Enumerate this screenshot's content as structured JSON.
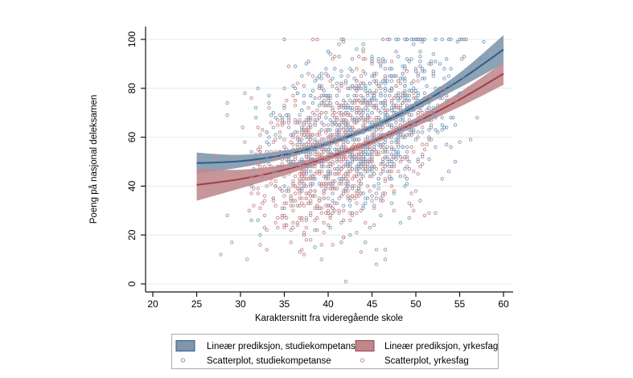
{
  "chart_data": {
    "type": "scatter",
    "title": "",
    "xlabel": "Karaktersnitt fra videregående skole",
    "ylabel": "Poeng på nasjonal deleksamen",
    "xlim": [
      18.9,
      61
    ],
    "ylim": [
      0,
      105
    ],
    "x_ticks": [
      20,
      25,
      30,
      35,
      40,
      45,
      50,
      55,
      60
    ],
    "y_ticks": [
      0,
      20,
      40,
      60,
      80,
      100
    ],
    "grid": "horizontal-only",
    "legend_position": "bottom-center",
    "series": [
      {
        "name": "Lineær prediksjon, studiekompetanse",
        "type": "line-with-ci",
        "line_color": "#2d5e8b",
        "band_color": "#7e95ab",
        "x": [
          25,
          30,
          35,
          40,
          45,
          50,
          55,
          60
        ],
        "y": [
          49.4,
          50.2,
          52.8,
          57.5,
          64.1,
          72.8,
          83.3,
          95.9
        ],
        "ci_upper": [
          53.7,
          52.8,
          54.5,
          58.6,
          65.3,
          74.4,
          86.3,
          101.7
        ],
        "ci_lower": [
          45.2,
          47.6,
          51.2,
          56.4,
          63.0,
          71.2,
          80.3,
          90.1
        ],
        "trend_coef": {
          "a": 75.5,
          "b": -2.03,
          "c": 0.0395
        }
      },
      {
        "name": "Lineær prediksjon, yrkesfag",
        "type": "line-with-ci",
        "line_color": "#9e3f47",
        "band_color": "#bf878c",
        "x": [
          25,
          30,
          35,
          40,
          45,
          50,
          55,
          60
        ],
        "y": [
          40.5,
          42.9,
          46.6,
          51.7,
          58.2,
          66.1,
          75.4,
          86.0
        ],
        "ci_upper": [
          47.0,
          46.7,
          48.8,
          52.9,
          59.4,
          67.9,
          78.4,
          90.6
        ],
        "ci_lower": [
          34.0,
          39.1,
          44.4,
          50.5,
          57.0,
          64.3,
          72.4,
          81.4
        ],
        "trend_coef": {
          "a": 49.3,
          "b": -1.041,
          "c": 0.02754
        }
      },
      {
        "name": "Scatterplot, studiekompetanse",
        "type": "scatter",
        "marker": "hollow-circle",
        "marker_color": "#7b9ab9",
        "n": 840,
        "seed": 20,
        "x_mean": 44.0,
        "x_sd": 5.3,
        "x_range": [
          27.0,
          60.2
        ],
        "x_step": 0.25,
        "trend_coef": {
          "a": 75.5,
          "b": -2.03,
          "c": 0.0395
        },
        "y_noise_sd": 16.5,
        "y_range": [
          0,
          100
        ],
        "y_step": 1
      },
      {
        "name": "Scatterplot, yrkesfag",
        "type": "scatter",
        "marker": "hollow-circle",
        "marker_color": "#c5898e",
        "n": 840,
        "seed": 77,
        "x_mean": 41.0,
        "x_sd": 5.1,
        "x_range": [
          26.5,
          60.0
        ],
        "x_step": 0.25,
        "trend_coef": {
          "a": 49.3,
          "b": -1.041,
          "c": 0.02754
        },
        "y_noise_sd": 16.5,
        "y_range": [
          0,
          100
        ],
        "y_step": 1
      }
    ]
  },
  "style": {
    "background": "#ffffff",
    "grid_color": "#e0ebee",
    "axis_color": "#141414",
    "text_color": "#000000",
    "legend_border_color": "#ababab",
    "legend_background": "#ffffff"
  }
}
